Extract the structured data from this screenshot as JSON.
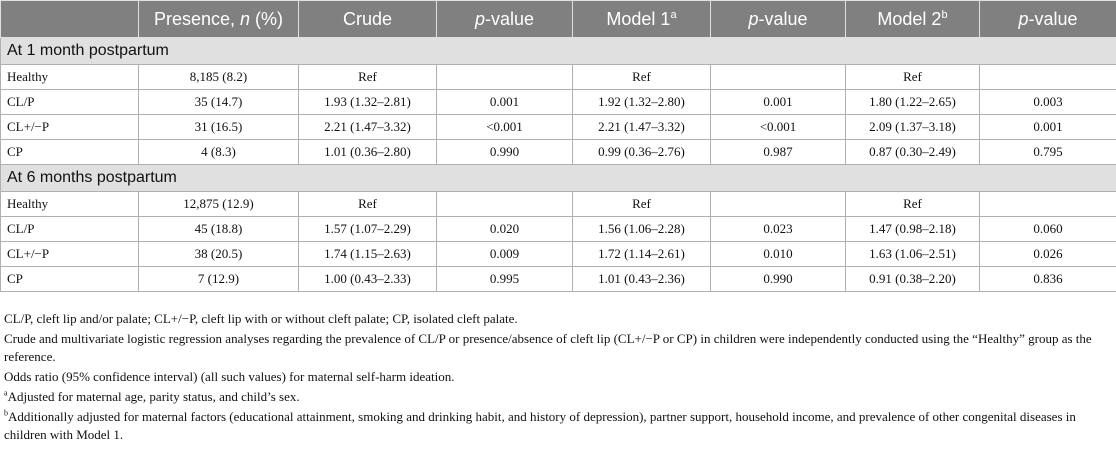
{
  "table": {
    "headers": {
      "presence_pre": "Presence, ",
      "presence_n": "n",
      "presence_post": " (%)",
      "crude": "Crude",
      "p_italic": "p",
      "p_suffix": "-value",
      "model1": "Model 1",
      "model1_sup": "a",
      "model2": "Model 2",
      "model2_sup": "b"
    },
    "sections": [
      {
        "title": "At 1 month postpartum",
        "rows": [
          {
            "group": "Healthy",
            "presence": "8,185 (8.2)",
            "crude": "Ref",
            "p_crude": "",
            "model1": "Ref",
            "p_model1": "",
            "model2": "Ref",
            "p_model2": ""
          },
          {
            "group": "CL/P",
            "presence": "35 (14.7)",
            "crude": "1.93 (1.32–2.81)",
            "p_crude": "0.001",
            "model1": "1.92 (1.32–2.80)",
            "p_model1": "0.001",
            "model2": "1.80 (1.22–2.65)",
            "p_model2": "0.003"
          },
          {
            "group": "CL+/−P",
            "presence": "31 (16.5)",
            "crude": "2.21 (1.47–3.32)",
            "p_crude": "<0.001",
            "model1": "2.21 (1.47–3.32)",
            "p_model1": "<0.001",
            "model2": "2.09 (1.37–3.18)",
            "p_model2": "0.001"
          },
          {
            "group": "CP",
            "presence": "4 (8.3)",
            "crude": "1.01 (0.36–2.80)",
            "p_crude": "0.990",
            "model1": "0.99 (0.36–2.76)",
            "p_model1": "0.987",
            "model2": "0.87 (0.30–2.49)",
            "p_model2": "0.795"
          }
        ]
      },
      {
        "title": "At 6 months postpartum",
        "rows": [
          {
            "group": "Healthy",
            "presence": "12,875 (12.9)",
            "crude": "Ref",
            "p_crude": "",
            "model1": "Ref",
            "p_model1": "",
            "model2": "Ref",
            "p_model2": ""
          },
          {
            "group": "CL/P",
            "presence": "45 (18.8)",
            "crude": "1.57 (1.07–2.29)",
            "p_crude": "0.020",
            "model1": "1.56 (1.06–2.28)",
            "p_model1": "0.023",
            "model2": "1.47 (0.98–2.18)",
            "p_model2": "0.060"
          },
          {
            "group": "CL+/−P",
            "presence": "38 (20.5)",
            "crude": "1.74 (1.15–2.63)",
            "p_crude": "0.009",
            "model1": "1.72 (1.14–2.61)",
            "p_model1": "0.010",
            "model2": "1.63 (1.06–2.51)",
            "p_model2": "0.026"
          },
          {
            "group": "CP",
            "presence": "7 (12.9)",
            "crude": "1.00 (0.43–2.33)",
            "p_crude": "0.995",
            "model1": "1.01 (0.43–2.36)",
            "p_model1": "0.990",
            "model2": "0.91 (0.38–2.20)",
            "p_model2": "0.836"
          }
        ]
      }
    ]
  },
  "footnotes": {
    "abbreviations": "CL/P, cleft lip and/or palate; CL+/−P, cleft lip with or without cleft palate; CP, isolated cleft palate.",
    "analysis": "Crude and multivariate logistic regression analyses regarding the prevalence of CL/P or presence/absence of cleft lip (CL+/−P or CP) in children were independently conducted using the “Healthy” group as the reference.",
    "odds_ratio": "Odds ratio (95% confidence interval) (all such values) for maternal self-harm ideation.",
    "note_a_marker": "a",
    "note_a": "Adjusted for maternal age, parity status, and child’s sex.",
    "note_b_marker": "b",
    "note_b": "Additionally adjusted for maternal factors (educational attainment, smoking and drinking habit, and history of depression), partner support, household income, and prevalence of other congenital diseases in children with Model 1."
  }
}
